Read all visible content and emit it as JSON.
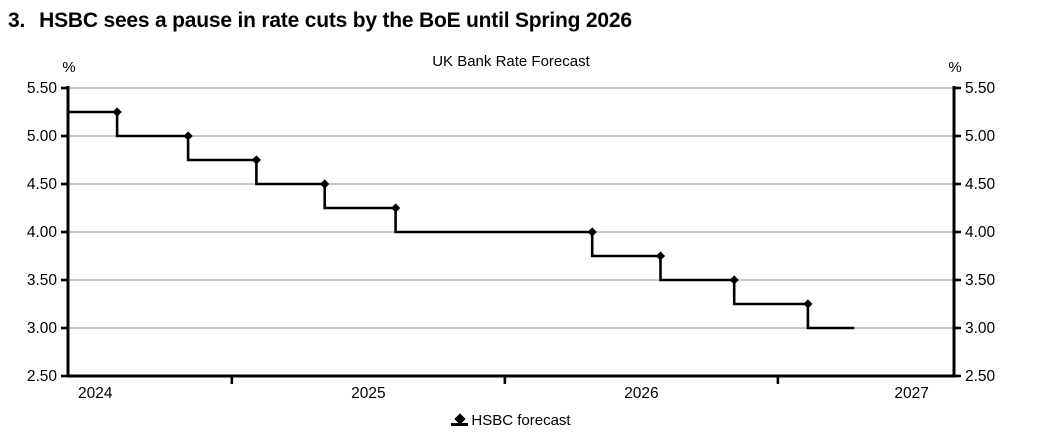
{
  "heading": {
    "number": "3.",
    "text": "HSBC sees a pause in rate cuts by the BoE until Spring 2026"
  },
  "chart_data": {
    "type": "line",
    "subtype": "step",
    "title": "UK Bank Rate Forecast",
    "legend": {
      "label": "HSBC forecast",
      "position": "bottom-center",
      "marker": "diamond"
    },
    "colors": {
      "line": "#000000",
      "marker": "#000000",
      "grid": "#c9c9c9",
      "axis": "#000000",
      "text": "#000000",
      "background": "#ffffff"
    },
    "y_axis": {
      "unit_label": "%",
      "min": 2.5,
      "max": 5.5,
      "tick_step": 0.5,
      "tick_labels": [
        "5.50",
        "5.00",
        "4.50",
        "4.00",
        "3.50",
        "3.00",
        "2.50"
      ],
      "sides": [
        "left",
        "right"
      ],
      "grid": true
    },
    "x_axis": {
      "min": 2024.4,
      "max": 2027.645,
      "boundary_ticks": [
        2025,
        2026,
        2027
      ],
      "year_labels": [
        {
          "label": "2024",
          "x": 2024.5
        },
        {
          "label": "2025",
          "x": 2025.5
        },
        {
          "label": "2026",
          "x": 2026.5
        },
        {
          "label": "2027",
          "x": 2027.49
        }
      ]
    },
    "series": [
      {
        "name": "HSBC forecast",
        "style": "step-with-diamond-markers",
        "steps": [
          {
            "rate": 5.25,
            "from": 2024.4,
            "to": 2024.58
          },
          {
            "rate": 5.0,
            "from": 2024.58,
            "to": 2024.84
          },
          {
            "rate": 4.75,
            "from": 2024.84,
            "to": 2025.09
          },
          {
            "rate": 4.5,
            "from": 2025.09,
            "to": 2025.34
          },
          {
            "rate": 4.25,
            "from": 2025.34,
            "to": 2025.6
          },
          {
            "rate": 4.0,
            "from": 2025.6,
            "to": 2026.32
          },
          {
            "rate": 3.75,
            "from": 2026.32,
            "to": 2026.57
          },
          {
            "rate": 3.5,
            "from": 2026.57,
            "to": 2026.84
          },
          {
            "rate": 3.25,
            "from": 2026.84,
            "to": 2027.11
          },
          {
            "rate": 3.0,
            "from": 2027.11,
            "to": 2027.28
          }
        ]
      }
    ]
  }
}
